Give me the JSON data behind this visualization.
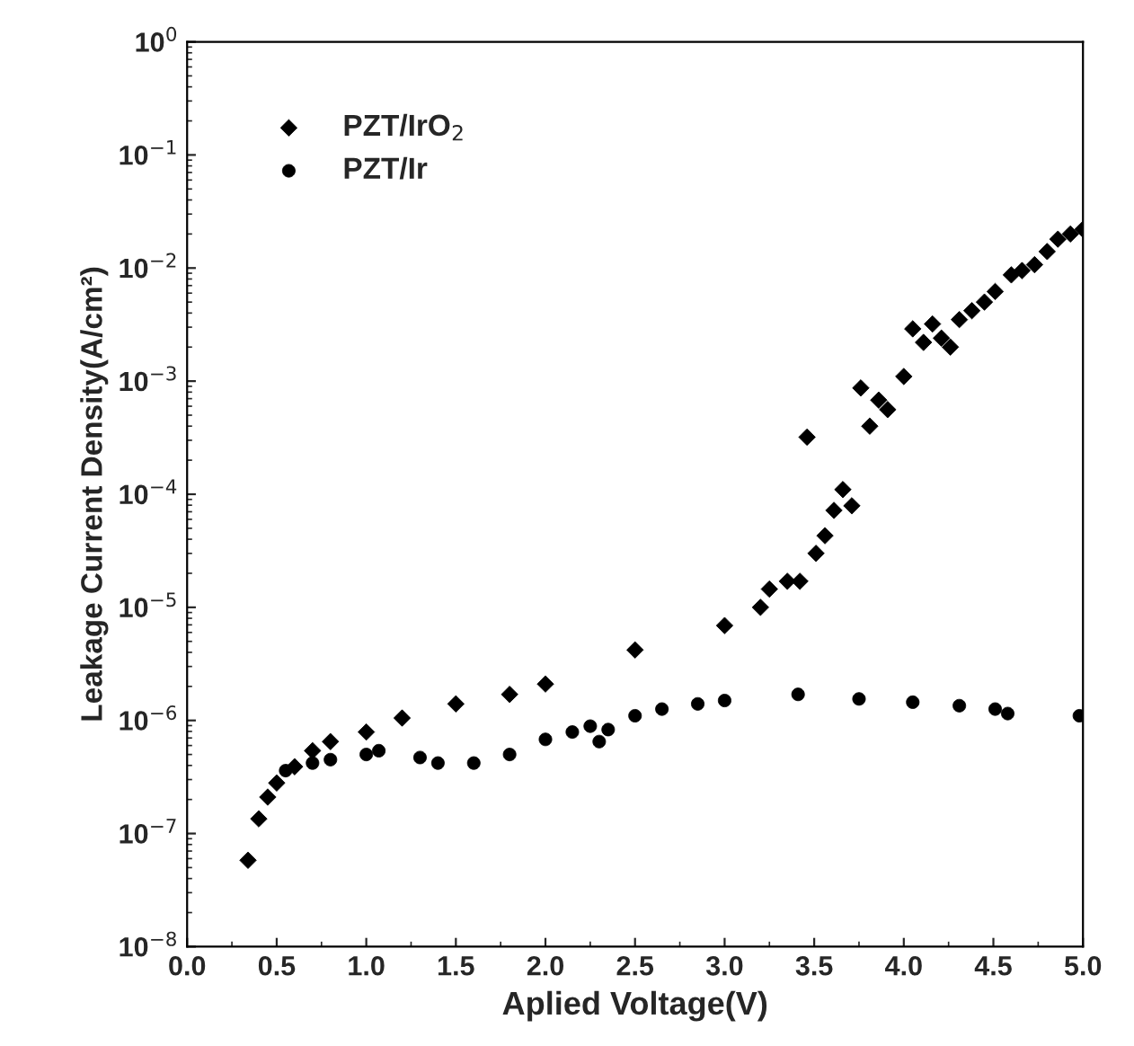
{
  "chart_data": {
    "type": "scatter",
    "xlabel": "Aplied Voltage(V)",
    "ylabel": "Leakage Current Density(A/cm²)",
    "log": "y",
    "xlim": [
      0,
      5
    ],
    "ylim": [
      1e-08,
      1
    ],
    "xticks": [
      {
        "value": 0,
        "label": "0.0"
      },
      {
        "value": 0.5,
        "label": "0.5"
      },
      {
        "value": 1,
        "label": "1.0"
      },
      {
        "value": 1.5,
        "label": "1.5"
      },
      {
        "value": 2,
        "label": "2.0"
      },
      {
        "value": 2.5,
        "label": "2.5"
      },
      {
        "value": 3,
        "label": "3.0"
      },
      {
        "value": 3.5,
        "label": "3.5"
      },
      {
        "value": 4,
        "label": "4.0"
      },
      {
        "value": 4.5,
        "label": "4.5"
      },
      {
        "value": 5,
        "label": "5.0"
      }
    ],
    "yticks": [
      {
        "value": 1e-08,
        "label": "10$^{−8}$"
      },
      {
        "value": 1e-07,
        "label": "10$^{−7}$"
      },
      {
        "value": 1e-06,
        "label": "10$^{−6}$"
      },
      {
        "value": 1e-05,
        "label": "10$^{−5}$"
      },
      {
        "value": 0.0001,
        "label": "10$^{−4}$"
      },
      {
        "value": 0.001,
        "label": "10$^{−3}$"
      },
      {
        "value": 0.01,
        "label": "10$^{−2}$"
      },
      {
        "value": 0.1,
        "label": "10$^{−1}$"
      },
      {
        "value": 1,
        "label": "10$^{0}$"
      }
    ],
    "grid": false,
    "legend": "top left",
    "series": [
      {
        "name": "PZT/IrO$_{2}$",
        "color": "#000000",
        "marker": "diamond",
        "x": [
          0.34,
          0.4,
          0.45,
          0.5,
          0.6,
          0.7,
          0.8,
          1.0,
          1.2,
          1.5,
          1.8,
          2.0,
          2.5,
          3.0,
          3.2,
          3.25,
          3.35,
          3.42,
          3.46,
          3.51,
          3.56,
          3.61,
          3.66,
          3.71,
          3.76,
          3.81,
          3.86,
          3.91,
          4.0,
          4.05,
          4.11,
          4.16,
          4.21,
          4.26,
          4.31,
          4.38,
          4.45,
          4.51,
          4.6,
          4.66,
          4.73,
          4.8,
          4.86,
          4.93,
          5.0
        ],
        "values": [
          5.8e-08,
          1.35e-07,
          2.1e-07,
          2.8e-07,
          3.9e-07,
          5.4e-07,
          6.5e-07,
          7.9e-07,
          1.05e-06,
          1.4e-06,
          1.7e-06,
          2.1e-06,
          4.2e-06,
          6.9e-06,
          1e-05,
          1.45e-05,
          1.7e-05,
          1.7e-05,
          0.00032,
          3e-05,
          4.3e-05,
          7.2e-05,
          0.00011,
          7.9e-05,
          0.00087,
          0.0004,
          0.00068,
          0.00056,
          0.0011,
          0.0029,
          0.0022,
          0.0032,
          0.0024,
          0.002,
          0.0035,
          0.0042,
          0.005,
          0.0062,
          0.0087,
          0.0095,
          0.0107,
          0.014,
          0.018,
          0.02,
          0.022
        ]
      },
      {
        "name": "PZT/Ir",
        "color": "#000000",
        "marker": "circle",
        "x": [
          0.55,
          0.7,
          0.8,
          1.0,
          1.07,
          1.3,
          1.4,
          1.6,
          1.8,
          2.0,
          2.15,
          2.25,
          2.3,
          2.35,
          2.5,
          2.65,
          2.85,
          3.0,
          3.41,
          3.75,
          4.05,
          4.31,
          4.51,
          4.58,
          4.98
        ],
        "values": [
          3.6e-07,
          4.2e-07,
          4.5e-07,
          5e-07,
          5.4e-07,
          4.7e-07,
          4.2e-07,
          4.2e-07,
          5e-07,
          6.8e-07,
          7.9e-07,
          8.9e-07,
          6.5e-07,
          8.3e-07,
          1.1e-06,
          1.26e-06,
          1.4e-06,
          1.5e-06,
          1.7e-06,
          1.55e-06,
          1.45e-06,
          1.35e-06,
          1.26e-06,
          1.15e-06,
          1.1e-06
        ]
      }
    ]
  }
}
